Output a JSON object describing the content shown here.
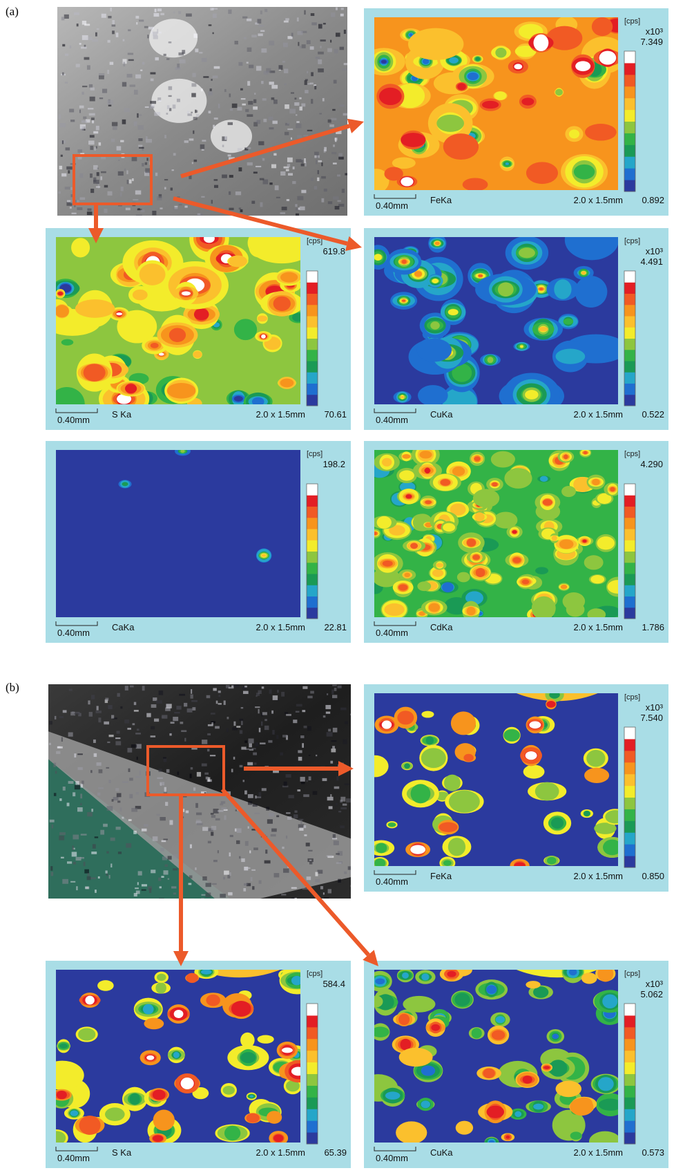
{
  "panels": [
    {
      "label": "(a)",
      "maps": [
        {
          "unit": "[cps]",
          "multiplier": "x10³",
          "max": "7.349",
          "min": "0.892",
          "scale_bar": "0.40mm",
          "element": "FeKa",
          "size": "2.0 x 1.5mm"
        },
        {
          "unit": "[cps]",
          "max": "619.8",
          "min": "70.61",
          "scale_bar": "0.40mm",
          "element": "S Ka",
          "size": "2.0 x 1.5mm"
        },
        {
          "unit": "[cps]",
          "multiplier": "x10³",
          "max": "4.491",
          "min": "0.522",
          "scale_bar": "0.40mm",
          "element": "CuKa",
          "size": "2.0 x 1.5mm"
        },
        {
          "unit": "[cps]",
          "max": "198.2",
          "min": "22.81",
          "scale_bar": "0.40mm",
          "element": "CaKa",
          "size": "2.0 x 1.5mm"
        },
        {
          "unit": "[cps]",
          "max": "4.290",
          "min": "1.786",
          "scale_bar": "0.40mm",
          "element": "CdKa",
          "size": "2.0 x 1.5mm"
        }
      ]
    },
    {
      "label": "(b)",
      "maps": [
        {
          "unit": "[cps]",
          "multiplier": "x10³",
          "max": "7.540",
          "min": "0.850",
          "scale_bar": "0.40mm",
          "element": "FeKa",
          "size": "2.0 x 1.5mm"
        },
        {
          "unit": "[cps]",
          "max": "584.4",
          "min": "65.39",
          "scale_bar": "0.40mm",
          "element": "S Ka",
          "size": "2.0 x 1.5mm"
        },
        {
          "unit": "[cps]",
          "multiplier": "x10³",
          "max": "5.062",
          "min": "0.573",
          "scale_bar": "0.40mm",
          "element": "CuKa",
          "size": "2.0 x 1.5mm"
        }
      ]
    }
  ]
}
